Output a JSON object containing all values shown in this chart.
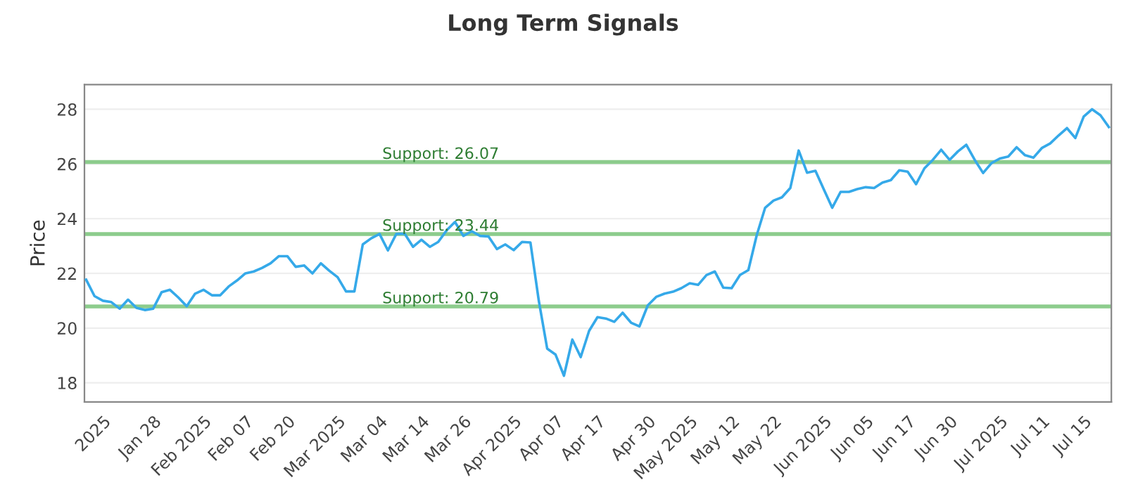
{
  "chart_data": {
    "type": "line",
    "title": "Long Term Signals",
    "ylabel": "Price",
    "categories": [
      null,
      null,
      "2025",
      null,
      null,
      null,
      null,
      null,
      "Jan 28",
      null,
      null,
      null,
      null,
      null,
      "Feb 2025",
      null,
      null,
      null,
      null,
      "Feb 07",
      null,
      null,
      null,
      null,
      "Feb 20",
      null,
      null,
      null,
      null,
      null,
      "Mar 2025",
      null,
      null,
      null,
      null,
      "Mar 04",
      null,
      null,
      null,
      null,
      "Mar 14",
      null,
      null,
      null,
      null,
      "Mar 26",
      null,
      null,
      null,
      null,
      null,
      "Apr 2025",
      null,
      null,
      null,
      null,
      "Apr 07",
      null,
      null,
      null,
      null,
      "Apr 17",
      null,
      null,
      null,
      null,
      null,
      "Apr 30",
      null,
      null,
      null,
      null,
      "May 2025",
      null,
      null,
      null,
      null,
      "May 12",
      null,
      null,
      null,
      null,
      "May 22",
      null,
      null,
      null,
      null,
      null,
      "Jun 2025",
      null,
      null,
      null,
      null,
      "Jun 05",
      null,
      null,
      null,
      null,
      "Jun 17",
      null,
      null,
      null,
      null,
      "Jun 30",
      null,
      null,
      null,
      null,
      null,
      "Jul 2025",
      null,
      null,
      null,
      null,
      "Jul 11",
      null,
      null,
      null,
      null,
      "Jul 15",
      null,
      null,
      null
    ],
    "series": [
      {
        "color": "#35a9e9",
        "values": [
          21.77,
          21.17,
          21.0,
          20.95,
          20.71,
          21.04,
          20.74,
          20.66,
          20.71,
          21.31,
          21.4,
          21.12,
          20.8,
          21.26,
          21.4,
          21.2,
          21.2,
          21.52,
          21.74,
          22.0,
          22.07,
          22.2,
          22.37,
          22.63,
          22.63,
          22.24,
          22.29,
          22.0,
          22.37,
          22.1,
          21.86,
          21.34,
          21.34,
          23.06,
          23.28,
          23.44,
          22.84,
          23.44,
          23.45,
          22.97,
          23.23,
          22.97,
          23.15,
          23.57,
          23.88,
          23.37,
          23.54,
          23.37,
          23.35,
          22.89,
          23.06,
          22.85,
          23.15,
          23.13,
          21.0,
          19.25,
          19.03,
          18.26,
          19.58,
          18.94,
          19.9,
          20.4,
          20.35,
          20.23,
          20.56,
          20.2,
          20.06,
          20.83,
          21.14,
          21.26,
          21.33,
          21.46,
          21.64,
          21.58,
          21.94,
          22.07,
          21.48,
          21.46,
          21.94,
          22.12,
          23.4,
          24.4,
          24.66,
          24.78,
          25.12,
          26.49,
          25.68,
          25.75,
          25.07,
          24.4,
          24.98,
          24.98,
          25.08,
          25.15,
          25.12,
          25.32,
          25.41,
          25.77,
          25.72,
          25.26,
          25.84,
          26.15,
          26.52,
          26.15,
          26.46,
          26.7,
          26.15,
          25.67,
          26.03,
          26.2,
          26.27,
          26.61,
          26.32,
          26.23,
          26.58,
          26.75,
          27.04,
          27.31,
          26.95,
          27.73,
          28.0,
          27.78,
          27.35
        ]
      }
    ],
    "ylim": [
      17.3,
      28.9
    ],
    "yticks": [
      18,
      20,
      22,
      24,
      26,
      28
    ],
    "grid": "y",
    "marker": "none",
    "line_style": "solid",
    "ref_lines": [
      {
        "axis": "y",
        "value": 26.07,
        "label": "Support: 26.07",
        "color": "#8ccc8c"
      },
      {
        "axis": "y",
        "value": 23.44,
        "label": "Support: 23.44",
        "color": "#8ccc8c"
      },
      {
        "axis": "y",
        "value": 20.79,
        "label": "Support: 20.79",
        "color": "#8ccc8c"
      }
    ]
  }
}
